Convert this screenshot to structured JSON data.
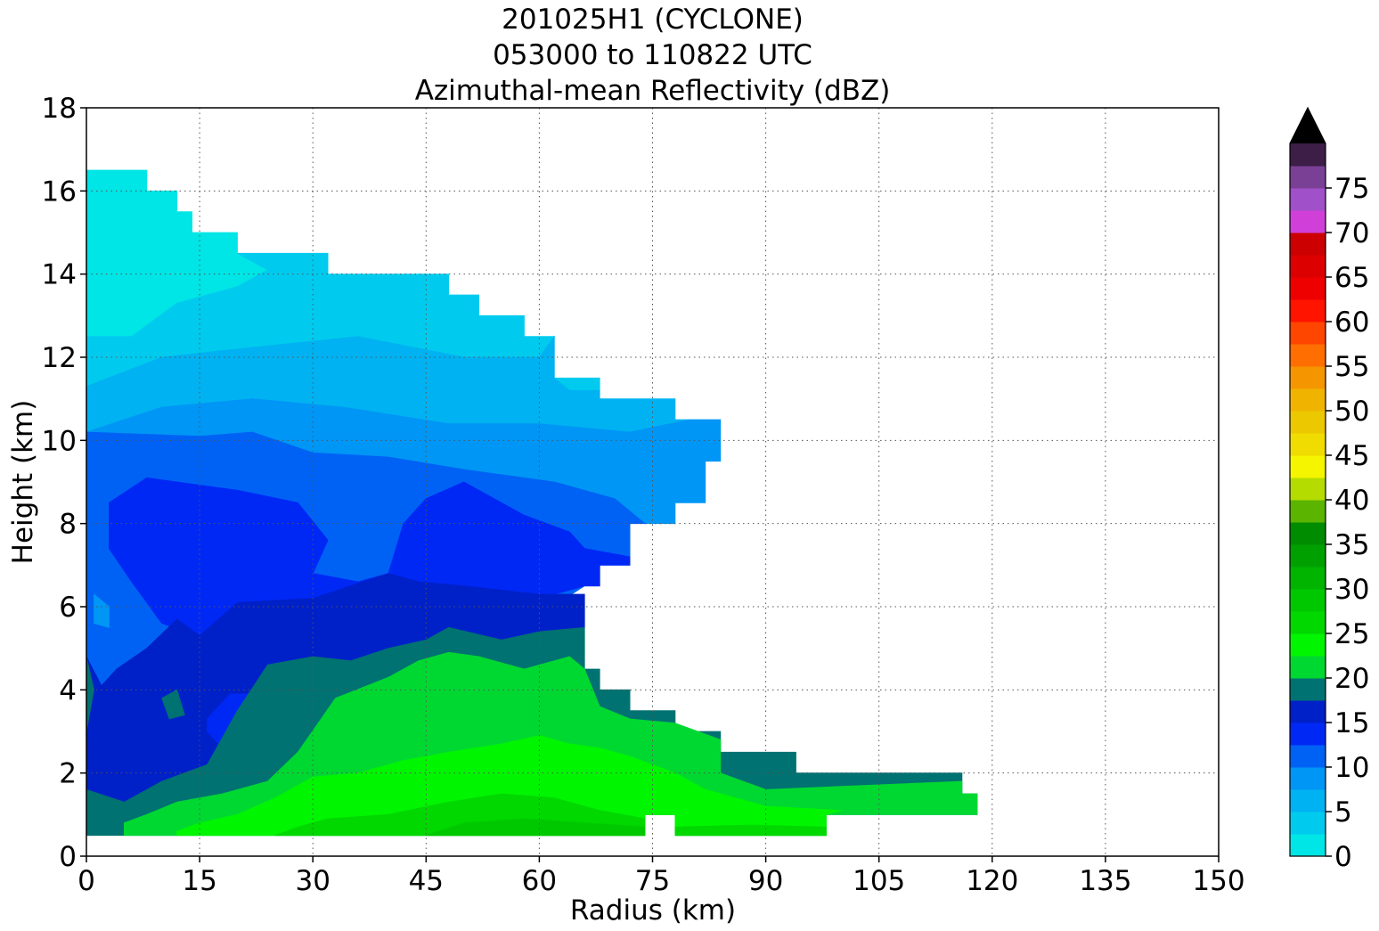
{
  "chart_data": {
    "type": "heatmap",
    "subtype": "filled-contour",
    "title": [
      "201025H1 (CYCLONE)",
      "053000 to 110822 UTC",
      "Azimuthal-mean Reflectivity (dBZ)"
    ],
    "xlabel": "Radius (km)",
    "ylabel": "Height (km)",
    "xlim": [
      0,
      150
    ],
    "ylim": [
      0,
      18
    ],
    "xticks": [
      0,
      15,
      30,
      45,
      60,
      75,
      90,
      105,
      120,
      135,
      150
    ],
    "yticks": [
      0,
      2,
      4,
      6,
      8,
      10,
      12,
      14,
      16,
      18
    ],
    "grid": true,
    "colorbar": {
      "orientation": "vertical",
      "position": "right",
      "extend": "max",
      "levels": [
        0,
        2.5,
        5,
        7.5,
        10,
        12.5,
        15,
        17.5,
        20,
        22.5,
        25,
        27.5,
        30,
        32.5,
        35,
        37.5,
        40,
        42.5,
        45,
        47.5,
        50,
        52.5,
        55,
        57.5,
        60,
        62.5,
        65,
        67.5,
        70,
        72.5,
        75,
        77.5,
        80
      ],
      "ticks": [
        0,
        5,
        10,
        15,
        20,
        25,
        30,
        35,
        40,
        45,
        50,
        55,
        60,
        65,
        70,
        75
      ],
      "colors": [
        "#00e5e5",
        "#00cbee",
        "#00b2f2",
        "#0096f5",
        "#0062f5",
        "#0028f5",
        "#0020c8",
        "#007272",
        "#00d832",
        "#00f500",
        "#00d800",
        "#00c800",
        "#00b400",
        "#00a000",
        "#008c00",
        "#5ab400",
        "#b4dc00",
        "#f5f500",
        "#f0dc00",
        "#ebc800",
        "#f0b400",
        "#f59600",
        "#ff6e00",
        "#ff4600",
        "#ff1400",
        "#ee0000",
        "#dc0000",
        "#cc0000",
        "#bb0022",
        "#e0007a",
        "#f000c8",
        "#f000f0"
      ],
      "over_color": "#000000",
      "top_colors": [
        "#d040d8",
        "#a050c8",
        "#7a4096",
        "#3c1e46"
      ]
    },
    "regions": [
      {
        "band": "0-2.5",
        "dBZ_range": [
          0,
          2.5
        ],
        "extent": "r 0-24 km, z 12.5-16.5 km"
      },
      {
        "band": "2.5-5",
        "dBZ_range": [
          2.5,
          5
        ],
        "extent": "r 0-66 km, z 11.5-15 km"
      },
      {
        "band": "5-7.5",
        "dBZ_range": [
          5,
          7.5
        ],
        "extent": "r 0-80 km, z 10.5-12.5 km"
      },
      {
        "band": "7.5-10",
        "dBZ_range": [
          7.5,
          10
        ],
        "extent": "r 0-84 km, z 8-11.2 km"
      },
      {
        "band": "10-12.5",
        "dBZ_range": [
          10,
          12.5
        ],
        "extent": "r 0-82 km, z 4-10.2 km"
      },
      {
        "band": "12.5-15",
        "dBZ_range": [
          12.5,
          15
        ],
        "extent": "r 3-72 km, z 5.8-9.2 km; core r 20-24 km z 2.5-4"
      },
      {
        "band": "15-17.5",
        "dBZ_range": [
          15,
          17.5
        ],
        "extent": "r 0-66 km, z 1.2-6.8 km"
      },
      {
        "band": "17.5-20",
        "dBZ_range": [
          17.5,
          20
        ],
        "extent": "r 0-118 km, z 0.5-6 km"
      },
      {
        "band": "20-22.5",
        "dBZ_range": [
          20,
          22.5
        ],
        "extent": "r 5-118 km, z 0.5-5 km"
      },
      {
        "band": "22.5-25",
        "dBZ_range": [
          22.5,
          25
        ],
        "extent": "r 12-100 km, z 0.5-2.6 km"
      },
      {
        "band": "25-27.5",
        "dBZ_range": [
          25,
          27.5
        ],
        "extent": "r 25-98 km, z 0.5-1.5 km"
      },
      {
        "band": "27.5-30",
        "dBZ_range": [
          27.5,
          30
        ],
        "extent": "r 45-74 km, z 0.5-0.9 km"
      }
    ]
  }
}
